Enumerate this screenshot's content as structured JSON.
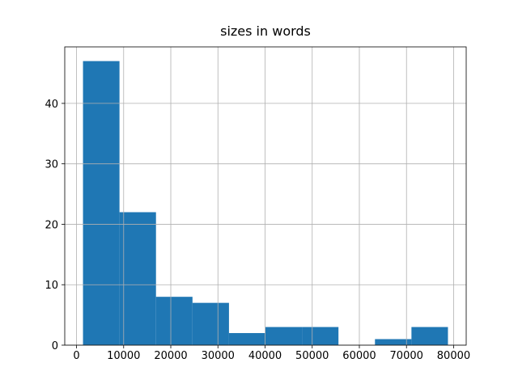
{
  "chart_data": {
    "type": "histogram",
    "title": "sizes in words",
    "bins": [
      1376,
      9118,
      16860,
      24602,
      32344,
      40086,
      47828,
      55570,
      63312,
      71054,
      78796
    ],
    "values": [
      47,
      22,
      8,
      7,
      2,
      3,
      3,
      0,
      1,
      3
    ],
    "color": "#1f77b4",
    "xlim": [
      -2495,
      82667
    ],
    "xticks": [
      0,
      10000,
      20000,
      30000,
      40000,
      50000,
      60000,
      70000,
      80000
    ],
    "ylim": [
      0,
      49.35
    ],
    "yticks": [
      0,
      10,
      20,
      30,
      40
    ],
    "grid": true
  }
}
